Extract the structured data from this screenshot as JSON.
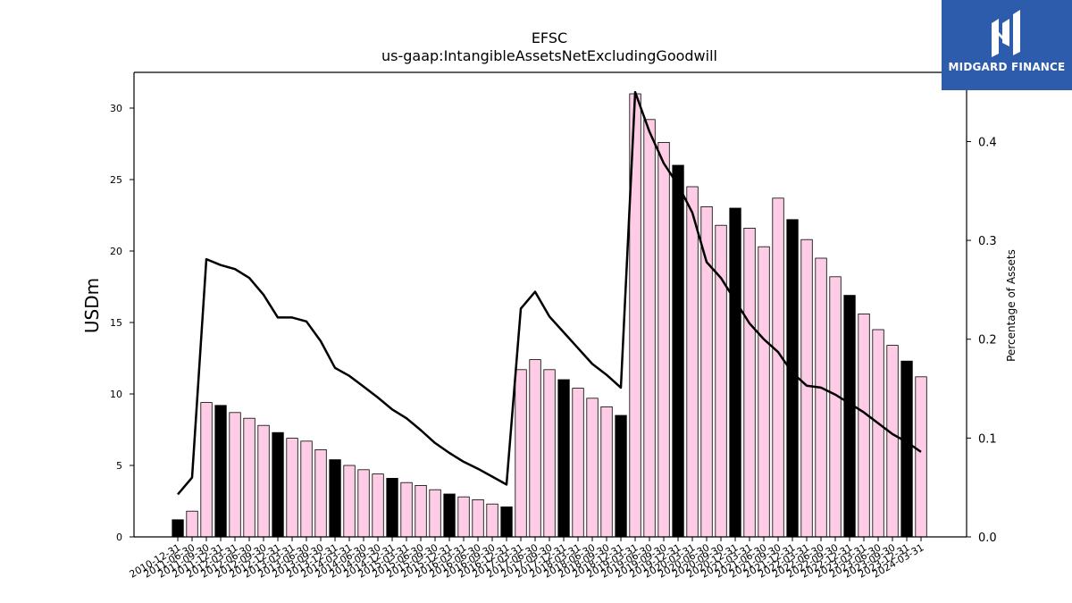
{
  "chart_data": {
    "type": "bar",
    "title": "EFSC",
    "subtitle": "us-gaap:IntangibleAssetsNetExcludingGoodwill",
    "ylabel": "USDm",
    "y2label": "Percentage of Assets",
    "ylim": [
      0,
      32.5
    ],
    "y2lim": [
      0,
      0.47
    ],
    "yticks": [
      0,
      5,
      10,
      15,
      20,
      25,
      30
    ],
    "y2ticks": [
      "0.0",
      "0.1",
      "0.2",
      "0.3",
      "0.4"
    ],
    "grid": false,
    "categories": [
      "2010-12-31",
      "2011-06-30",
      "2011-09-30",
      "2011-12-31",
      "2012-03-31",
      "2012-06-30",
      "2012-09-30",
      "2012-12-31",
      "2013-03-31",
      "2013-06-30",
      "2013-09-30",
      "2013-12-31",
      "2014-03-31",
      "2014-06-30",
      "2014-09-30",
      "2014-12-31",
      "2015-03-31",
      "2015-06-30",
      "2015-09-30",
      "2015-12-31",
      "2016-03-31",
      "2016-06-30",
      "2016-09-30",
      "2016-12-31",
      "2017-03-31",
      "2017-06-30",
      "2017-09-30",
      "2017-12-31",
      "2018-03-31",
      "2018-06-30",
      "2018-09-30",
      "2018-12-31",
      "2019-03-31",
      "2019-06-30",
      "2019-09-30",
      "2019-12-31",
      "2020-03-31",
      "2020-06-30",
      "2020-09-30",
      "2020-12-31",
      "2021-03-31",
      "2021-06-30",
      "2021-09-30",
      "2021-12-31",
      "2022-03-31",
      "2022-06-30",
      "2022-09-30",
      "2022-12-31",
      "2023-03-31",
      "2023-06-30",
      "2023-09-30",
      "2023-12-31",
      "2024-03-31"
    ],
    "series": [
      {
        "type": "bar",
        "axis": "left",
        "values": [
          1.2,
          1.8,
          9.4,
          9.2,
          8.7,
          8.3,
          7.8,
          7.3,
          6.9,
          6.7,
          6.1,
          5.4,
          5.0,
          4.7,
          4.4,
          4.1,
          3.8,
          3.6,
          3.3,
          3.0,
          2.8,
          2.6,
          2.3,
          2.1,
          11.7,
          12.4,
          11.7,
          11.0,
          10.4,
          9.7,
          9.1,
          8.5,
          31.0,
          29.2,
          27.6,
          26.0,
          24.5,
          23.1,
          21.8,
          23.0,
          21.6,
          20.3,
          23.7,
          22.2,
          20.8,
          19.5,
          18.2,
          16.9,
          15.6,
          14.5,
          13.4,
          12.3,
          11.2
        ],
        "highlight": [
          true,
          false,
          false,
          true,
          false,
          false,
          false,
          true,
          false,
          false,
          false,
          true,
          false,
          false,
          false,
          true,
          false,
          false,
          false,
          true,
          false,
          false,
          false,
          true,
          false,
          false,
          false,
          true,
          false,
          false,
          false,
          true,
          false,
          false,
          false,
          true,
          false,
          false,
          false,
          true,
          false,
          false,
          false,
          true,
          false,
          false,
          false,
          true,
          false,
          false,
          false,
          true,
          false
        ],
        "color": "#ffcce6",
        "highlight_color": "#000000"
      },
      {
        "type": "line",
        "axis": "right",
        "values": [
          0.043,
          0.06,
          0.281,
          0.275,
          0.271,
          0.262,
          0.245,
          0.222,
          0.222,
          0.218,
          0.198,
          0.171,
          0.163,
          0.152,
          0.141,
          0.129,
          0.12,
          0.108,
          0.095,
          0.085,
          0.076,
          0.069,
          0.061,
          0.053,
          0.231,
          0.248,
          0.223,
          0.207,
          0.191,
          0.175,
          0.164,
          0.151,
          0.45,
          0.41,
          0.378,
          0.356,
          0.328,
          0.278,
          0.262,
          0.239,
          0.216,
          0.2,
          0.187,
          0.166,
          0.153,
          0.151,
          0.144,
          0.135,
          0.126,
          0.115,
          0.104,
          0.096,
          0.086
        ],
        "color": "#000000"
      }
    ]
  },
  "logo": {
    "text": "MIDGARD FINANCE",
    "bg_color": "#2d5cad"
  }
}
